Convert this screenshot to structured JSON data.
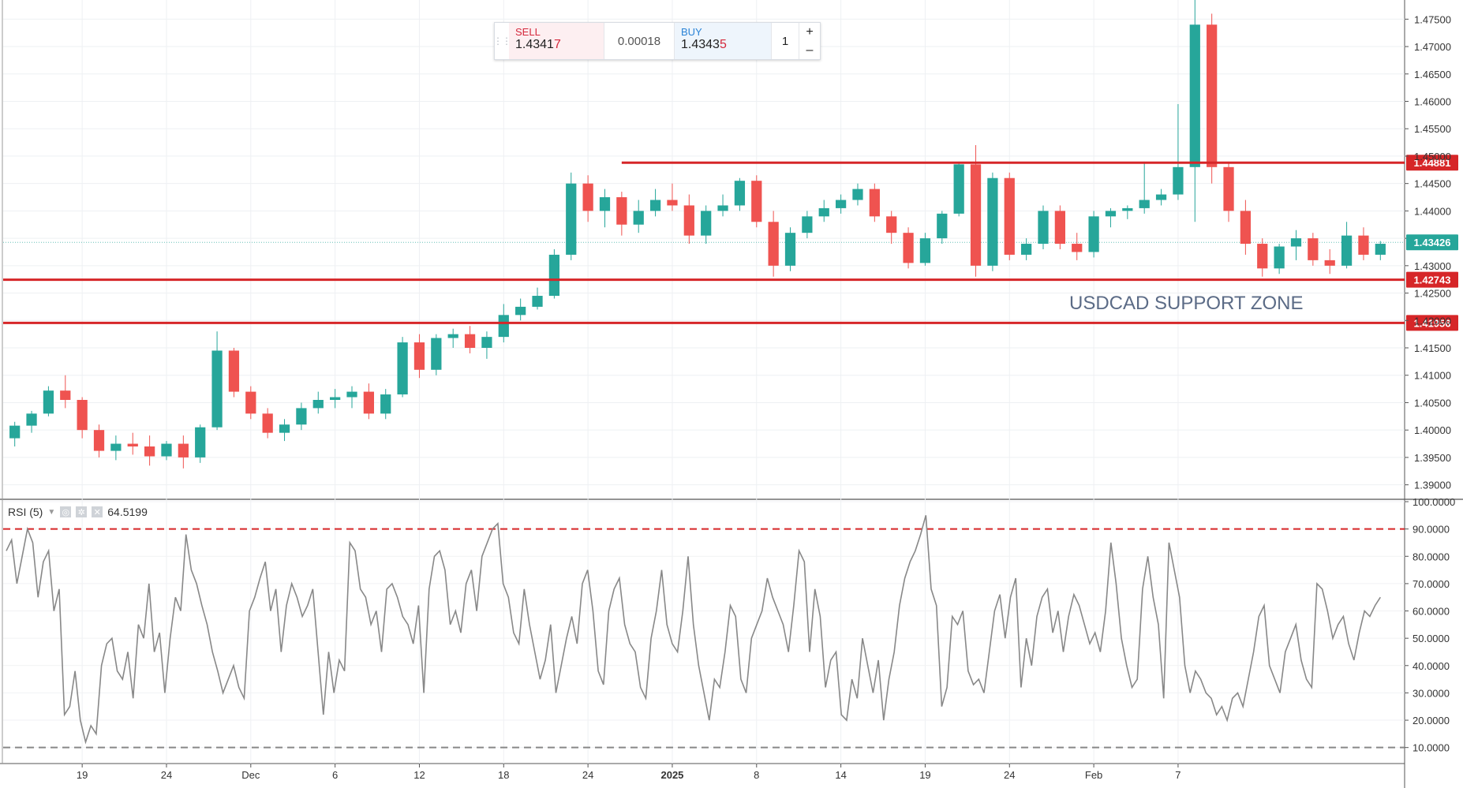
{
  "ticket": {
    "sell_label": "SELL",
    "sell_price_main": "1.4341",
    "sell_price_last": "7",
    "spread": "0.00018",
    "buy_label": "BUY",
    "buy_price_main": "1.4343",
    "buy_price_last": "5",
    "quantity": "1",
    "plus": "+",
    "minus": "–"
  },
  "rsi_legend": {
    "name": "RSI (5)",
    "value": "64.5199"
  },
  "colors": {
    "up": "#26a69a",
    "down": "#ef5350",
    "level_line": "#d62628",
    "current_price": "#26a69a",
    "rsi_line": "#888888"
  },
  "chart_data": [
    {
      "type": "candlestick",
      "title": "",
      "annotation": "USDCAD SUPPORT ZONE",
      "ylim": [
        1.3875,
        1.4785
      ],
      "y_ticks": [
        "1.39000",
        "1.39500",
        "1.40000",
        "1.40500",
        "1.41000",
        "1.41500",
        "1.42000",
        "1.42500",
        "1.43000",
        "1.43500",
        "1.44000",
        "1.44500",
        "1.45000",
        "1.45500",
        "1.46000",
        "1.46500",
        "1.47000",
        "1.47500"
      ],
      "x_ticks": [
        "19",
        "24",
        "Dec",
        "6",
        "12",
        "18",
        "24",
        "2025",
        "8",
        "14",
        "19",
        "24",
        "Feb",
        "7"
      ],
      "x_tick_bar_index": [
        4,
        9,
        14,
        19,
        24,
        29,
        34,
        39,
        44,
        49,
        54,
        59,
        64,
        69
      ],
      "levels": [
        {
          "label": "1.44881",
          "value": 1.44881,
          "start_bar": 36
        },
        {
          "label": "1.42743",
          "value": 1.42743,
          "start_bar": 0
        },
        {
          "label": "1.41956",
          "value": 1.41956,
          "start_bar": 0
        }
      ],
      "current_price": {
        "label": "1.43426",
        "value": 1.43426
      },
      "candles": [
        [
          1.3985,
          1.4015,
          1.397,
          1.4008
        ],
        [
          1.4008,
          1.4035,
          1.3995,
          1.403
        ],
        [
          1.403,
          1.408,
          1.4025,
          1.4072
        ],
        [
          1.4072,
          1.41,
          1.404,
          1.4055
        ],
        [
          1.4055,
          1.406,
          1.3985,
          1.4
        ],
        [
          1.4,
          1.401,
          1.395,
          1.3962
        ],
        [
          1.3962,
          1.399,
          1.3945,
          1.3975
        ],
        [
          1.3975,
          1.3995,
          1.3955,
          1.397
        ],
        [
          1.397,
          1.399,
          1.3935,
          1.3952
        ],
        [
          1.3952,
          1.398,
          1.3945,
          1.3975
        ],
        [
          1.3975,
          1.399,
          1.393,
          1.395
        ],
        [
          1.395,
          1.401,
          1.394,
          1.4005
        ],
        [
          1.4005,
          1.418,
          1.4,
          1.4145
        ],
        [
          1.4145,
          1.415,
          1.406,
          1.407
        ],
        [
          1.407,
          1.408,
          1.402,
          1.403
        ],
        [
          1.403,
          1.404,
          1.3985,
          1.3995
        ],
        [
          1.3995,
          1.402,
          1.398,
          1.401
        ],
        [
          1.401,
          1.405,
          1.4,
          1.404
        ],
        [
          1.404,
          1.407,
          1.403,
          1.4055
        ],
        [
          1.4055,
          1.4075,
          1.404,
          1.406
        ],
        [
          1.406,
          1.408,
          1.404,
          1.407
        ],
        [
          1.407,
          1.4085,
          1.402,
          1.403
        ],
        [
          1.403,
          1.4075,
          1.402,
          1.4065
        ],
        [
          1.4065,
          1.417,
          1.406,
          1.416
        ],
        [
          1.416,
          1.4175,
          1.4095,
          1.411
        ],
        [
          1.411,
          1.4175,
          1.41,
          1.4168
        ],
        [
          1.4168,
          1.4185,
          1.415,
          1.4175
        ],
        [
          1.4175,
          1.419,
          1.414,
          1.415
        ],
        [
          1.415,
          1.418,
          1.413,
          1.417
        ],
        [
          1.417,
          1.423,
          1.416,
          1.421
        ],
        [
          1.421,
          1.424,
          1.42,
          1.4225
        ],
        [
          1.4225,
          1.426,
          1.422,
          1.4245
        ],
        [
          1.4245,
          1.433,
          1.424,
          1.432
        ],
        [
          1.432,
          1.447,
          1.431,
          1.445
        ],
        [
          1.445,
          1.4465,
          1.438,
          1.44
        ],
        [
          1.44,
          1.444,
          1.437,
          1.4425
        ],
        [
          1.4425,
          1.4435,
          1.4355,
          1.4375
        ],
        [
          1.4375,
          1.442,
          1.436,
          1.44
        ],
        [
          1.44,
          1.444,
          1.439,
          1.442
        ],
        [
          1.442,
          1.445,
          1.44,
          1.441
        ],
        [
          1.441,
          1.443,
          1.434,
          1.4355
        ],
        [
          1.4355,
          1.441,
          1.434,
          1.44
        ],
        [
          1.44,
          1.443,
          1.439,
          1.441
        ],
        [
          1.441,
          1.446,
          1.44,
          1.4455
        ],
        [
          1.4455,
          1.4465,
          1.437,
          1.438
        ],
        [
          1.438,
          1.44,
          1.428,
          1.43
        ],
        [
          1.43,
          1.437,
          1.429,
          1.436
        ],
        [
          1.436,
          1.44,
          1.435,
          1.439
        ],
        [
          1.439,
          1.442,
          1.438,
          1.4405
        ],
        [
          1.4405,
          1.443,
          1.4395,
          1.442
        ],
        [
          1.442,
          1.445,
          1.441,
          1.444
        ],
        [
          1.444,
          1.445,
          1.438,
          1.439
        ],
        [
          1.439,
          1.44,
          1.434,
          1.436
        ],
        [
          1.436,
          1.437,
          1.4295,
          1.4305
        ],
        [
          1.4305,
          1.436,
          1.43,
          1.435
        ],
        [
          1.435,
          1.44,
          1.434,
          1.4395
        ],
        [
          1.4395,
          1.449,
          1.439,
          1.4485
        ],
        [
          1.4485,
          1.452,
          1.428,
          1.43
        ],
        [
          1.43,
          1.447,
          1.429,
          1.446
        ],
        [
          1.446,
          1.447,
          1.431,
          1.432
        ],
        [
          1.432,
          1.435,
          1.431,
          1.434
        ],
        [
          1.434,
          1.441,
          1.433,
          1.44
        ],
        [
          1.44,
          1.441,
          1.433,
          1.434
        ],
        [
          1.434,
          1.436,
          1.431,
          1.4325
        ],
        [
          1.4325,
          1.44,
          1.4315,
          1.439
        ],
        [
          1.439,
          1.4405,
          1.437,
          1.44
        ],
        [
          1.44,
          1.441,
          1.4385,
          1.4405
        ],
        [
          1.4405,
          1.449,
          1.4395,
          1.442
        ],
        [
          1.442,
          1.444,
          1.441,
          1.443
        ],
        [
          1.443,
          1.4595,
          1.442,
          1.448
        ],
        [
          1.448,
          1.48,
          1.438,
          1.474
        ],
        [
          1.474,
          1.476,
          1.445,
          1.448
        ],
        [
          1.448,
          1.449,
          1.438,
          1.44
        ],
        [
          1.44,
          1.442,
          1.432,
          1.434
        ],
        [
          1.434,
          1.435,
          1.428,
          1.4295
        ],
        [
          1.4295,
          1.434,
          1.4285,
          1.4335
        ],
        [
          1.4335,
          1.4365,
          1.431,
          1.435
        ],
        [
          1.435,
          1.436,
          1.43,
          1.431
        ],
        [
          1.431,
          1.433,
          1.4285,
          1.43
        ],
        [
          1.43,
          1.438,
          1.4295,
          1.4355
        ],
        [
          1.4355,
          1.437,
          1.431,
          1.432
        ],
        [
          1.432,
          1.4345,
          1.431,
          1.434
        ]
      ]
    },
    {
      "type": "line",
      "title": "RSI (5)",
      "ylim": [
        5,
        100
      ],
      "y_ticks": [
        "10.0000",
        "20.0000",
        "30.0000",
        "40.0000",
        "50.0000",
        "60.0000",
        "70.0000",
        "80.0000",
        "90.0000",
        "100.0000"
      ],
      "overbought": 90,
      "oversold": 10,
      "values": [
        82,
        86,
        70,
        80,
        90,
        85,
        65,
        78,
        82,
        60,
        68,
        22,
        25,
        38,
        20,
        12,
        18,
        15,
        40,
        48,
        50,
        38,
        35,
        45,
        28,
        55,
        50,
        70,
        45,
        52,
        30,
        50,
        65,
        60,
        88,
        75,
        70,
        62,
        55,
        45,
        38,
        30,
        35,
        40,
        32,
        28,
        60,
        65,
        72,
        78,
        60,
        68,
        45,
        62,
        70,
        65,
        58,
        62,
        68,
        45,
        22,
        45,
        30,
        42,
        38,
        85,
        82,
        68,
        65,
        55,
        60,
        45,
        68,
        70,
        65,
        58,
        55,
        48,
        62,
        30,
        68,
        80,
        82,
        75,
        55,
        60,
        52,
        70,
        75,
        60,
        80,
        85,
        90,
        92,
        70,
        65,
        52,
        48,
        68,
        55,
        45,
        35,
        42,
        55,
        30,
        40,
        50,
        58,
        48,
        70,
        75,
        60,
        38,
        33,
        60,
        68,
        72,
        55,
        48,
        45,
        32,
        28,
        50,
        60,
        75,
        55,
        48,
        45,
        60,
        80,
        55,
        40,
        30,
        20,
        35,
        32,
        45,
        62,
        58,
        35,
        30,
        50,
        55,
        60,
        72,
        65,
        60,
        55,
        45,
        62,
        82,
        78,
        45,
        68,
        58,
        32,
        42,
        45,
        22,
        20,
        35,
        28,
        50,
        40,
        30,
        42,
        20,
        35,
        45,
        62,
        72,
        78,
        82,
        88,
        95,
        68,
        62,
        25,
        32,
        58,
        55,
        60,
        38,
        33,
        35,
        30,
        45,
        60,
        66,
        50,
        65,
        72,
        32,
        50,
        40,
        58,
        65,
        68,
        52,
        60,
        45,
        58,
        66,
        62,
        55,
        48,
        52,
        45,
        60,
        85,
        70,
        50,
        40,
        32,
        35,
        68,
        80,
        65,
        55,
        28,
        85,
        75,
        65,
        40,
        30,
        38,
        35,
        30,
        28,
        22,
        25,
        20,
        28,
        30,
        25,
        35,
        45,
        58,
        62,
        40,
        35,
        30,
        45,
        50,
        55,
        42,
        35,
        32,
        70,
        68,
        60,
        50,
        55,
        58,
        48,
        42,
        52,
        60,
        58,
        62,
        65
      ]
    }
  ]
}
